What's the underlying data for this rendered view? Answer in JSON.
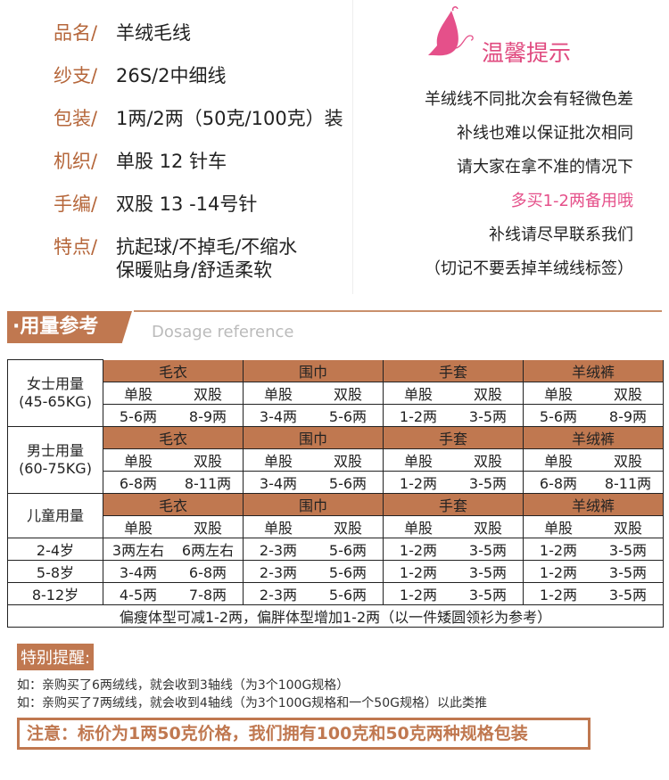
{
  "specs": [
    {
      "k": "品名/",
      "v": "羊绒毛线"
    },
    {
      "k": "纱支/",
      "v": "26S/2中细线"
    },
    {
      "k": "包装/",
      "v": "1两/2两（50克/100克）装"
    },
    {
      "k": "机织/",
      "v": "单股 12 针车"
    },
    {
      "k": "手编/",
      "v": "双股 13 -14号针"
    },
    {
      "k": "特点/",
      "v": "抗起球/不掉毛/不缩水",
      "v2": "保暖贴身/舒适柔软"
    }
  ],
  "tips": {
    "title": "温馨提示",
    "lines": [
      "羊绒线不同批次会有轻微色差",
      "补线也难以保证批次相同",
      "请大家在拿不准的情况下",
      "多买1-2两备用哦",
      "补线请尽早联系我们",
      "（切记不要丢掉羊绒线标签）"
    ],
    "highlight_index": 3,
    "icon": "butterfly-icon",
    "color": "#e5508a"
  },
  "section": {
    "title": "·用量参考",
    "subtitle": "Dosage   reference",
    "color": "#c07850"
  },
  "table": {
    "columns": [
      "毛衣",
      "围巾",
      "手套",
      "羊绒裤"
    ],
    "sub": [
      "单股",
      "双股"
    ],
    "groups": [
      {
        "label": "女士用量",
        "label2": "(45-65KG)",
        "rows": [
          [
            [
              "5-6两",
              "8-9两"
            ],
            [
              "3-4两",
              "5-6两"
            ],
            [
              "1-2两",
              "3-5两"
            ],
            [
              "5-6两",
              "8-9两"
            ]
          ]
        ]
      },
      {
        "label": "男士用量",
        "label2": "(60-75KG)",
        "rows": [
          [
            [
              "6-8两",
              "8-11两"
            ],
            [
              "3-4两",
              "5-6两"
            ],
            [
              "1-2两",
              "3-5两"
            ],
            [
              "6-8两",
              "8-11两"
            ]
          ]
        ]
      },
      {
        "label": "儿童用量",
        "label2": "",
        "rows": [
          {
            "age": "2-4岁",
            "v": [
              [
                "3两左右",
                "6两左右"
              ],
              [
                "2-3两",
                "5-6两"
              ],
              [
                "1-2两",
                "3-5两"
              ],
              [
                "1-2两",
                "3-5两"
              ]
            ]
          },
          {
            "age": "5-8岁",
            "v": [
              [
                "3-4两",
                "6-8两"
              ],
              [
                "2-3两",
                "5-6两"
              ],
              [
                "1-2两",
                "3-5两"
              ],
              [
                "1-2两",
                "3-5两"
              ]
            ]
          },
          {
            "age": "8-12岁",
            "v": [
              [
                "4-5两",
                "7-8两"
              ],
              [
                "2-3两",
                "5-6两"
              ],
              [
                "1-2两",
                "3-5两"
              ],
              [
                "1-2两",
                "3-5两"
              ]
            ]
          }
        ]
      }
    ],
    "footer": "偏瘦体型可减1-2两，偏胖体型增加1-2两（以一件矮圆领衫为参考）"
  },
  "remind": {
    "title": "特别提醒:",
    "lines": [
      "如：亲购买了6两绒线，就会收到3轴线（为3个100G规格）",
      "如：亲购买了7两绒线，就会收到4轴线（为3个100G规格和一个50G规格）以此类推"
    ]
  },
  "note": "注意：标价为1两50克价格，我们拥有100克和50克两种规格包装"
}
